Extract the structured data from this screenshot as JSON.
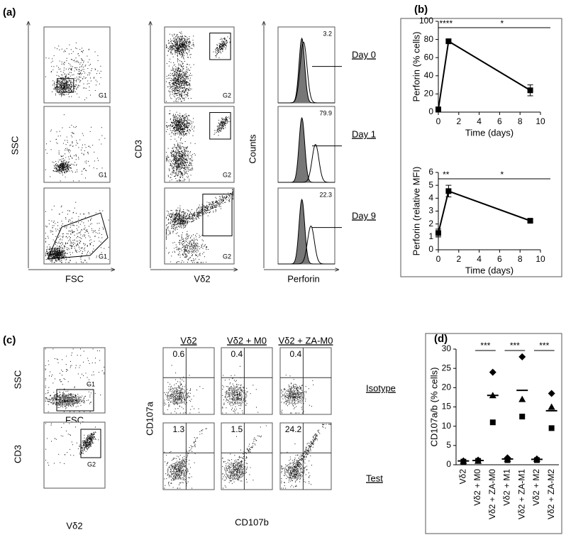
{
  "panel_labels": {
    "a": "(a)",
    "b": "(b)",
    "c": "(c)",
    "d": "(d)"
  },
  "panel_a": {
    "ssc": "SSC",
    "fsc": "FSC",
    "cd3": "CD3",
    "vd2": "Vδ2",
    "counts": "Counts",
    "perforin": "Perforin",
    "gates": [
      "G1",
      "G1",
      "G1",
      "G2",
      "G2",
      "G2"
    ],
    "percent": [
      3.2,
      79.9,
      22.3
    ],
    "days": [
      "Day 0",
      "Day 1",
      "Day 9"
    ]
  },
  "panel_c": {
    "ssc": "SSC",
    "fsc": "FSC",
    "cd3": "CD3",
    "vd2": "Vδ2",
    "gates": [
      "G1",
      "G2"
    ],
    "columns": [
      "Vδ2",
      "Vδ2 + M0",
      "Vδ2 + ZA-M0"
    ],
    "rows": [
      "Isotype",
      "Test"
    ],
    "q2": [
      [
        0.6,
        0.4,
        0.4
      ],
      [
        1.3,
        1.5,
        24.2
      ]
    ],
    "cd107a": "CD107a",
    "cd107b": "CD107b"
  },
  "chart_data": [
    {
      "type": "line",
      "x": [
        0,
        1,
        9
      ],
      "values": [
        3,
        78,
        24
      ],
      "errors": [
        1,
        2,
        6
      ],
      "color": "#000000",
      "xlim": [
        0,
        10
      ],
      "xticks": [
        0,
        2,
        4,
        6,
        8,
        10
      ],
      "ylim": [
        0,
        100
      ],
      "yticks": [
        0,
        20,
        40,
        60,
        80,
        100
      ],
      "x_label": "Time (days)",
      "y_label": "Perforin (% cells)",
      "annotations": [
        "****",
        "*"
      ]
    },
    {
      "type": "line",
      "x": [
        0,
        1,
        9
      ],
      "values": [
        1.3,
        4.55,
        2.25
      ],
      "errors": [
        0.3,
        0.45,
        0.1
      ],
      "color": "#000000",
      "xlim": [
        0,
        10
      ],
      "xticks": [
        0,
        2,
        4,
        6,
        8,
        10
      ],
      "ylim": [
        0,
        6
      ],
      "yticks": [
        0,
        1,
        2,
        3,
        4,
        5,
        6
      ],
      "x_label": "Time (days)",
      "y_label": "Perforin (relative MFI)",
      "annotations": [
        "**",
        "*"
      ]
    },
    {
      "type": "strip",
      "categories": [
        "Vδ2",
        "Vδ2 + M0",
        "Vδ2 + ZA-M0",
        "Vδ2 + M1",
        "Vδ2 + ZA-M1",
        "Vδ2 + M2",
        "Vδ2 + ZA-M2"
      ],
      "series": [
        {
          "marker": "diamond",
          "color": "#000000",
          "values": [
            1,
            1.2,
            24,
            1.8,
            28,
            1.5,
            18.5
          ]
        },
        {
          "marker": "triangle",
          "color": "#000000",
          "values": [
            1,
            1,
            18,
            1.5,
            17,
            1.5,
            15
          ]
        },
        {
          "marker": "square",
          "color": "#000000",
          "values": [
            0.8,
            1,
            11,
            1.2,
            12.5,
            1.2,
            9.5
          ]
        }
      ],
      "means": [
        1,
        1.1,
        18,
        1.5,
        19.3,
        1.4,
        14
      ],
      "ylim": [
        0,
        30
      ],
      "yticks": [
        0,
        5,
        10,
        15,
        20,
        25,
        30
      ],
      "y_label": "CD107a/b (% cells)",
      "annotations": [
        "***",
        "***",
        "***"
      ]
    }
  ]
}
